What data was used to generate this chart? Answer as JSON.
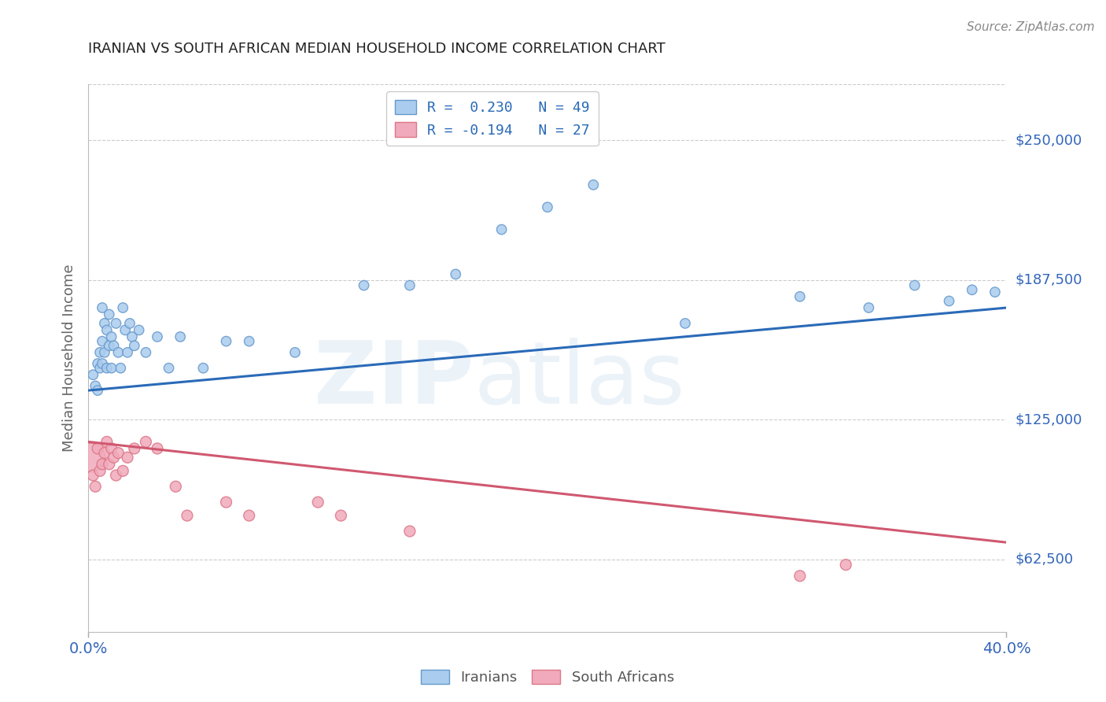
{
  "title": "IRANIAN VS SOUTH AFRICAN MEDIAN HOUSEHOLD INCOME CORRELATION CHART",
  "source": "Source: ZipAtlas.com",
  "ylabel": "Median Household Income",
  "yticks": [
    62500,
    125000,
    187500,
    250000
  ],
  "ytick_labels": [
    "$62,500",
    "$125,000",
    "$187,500",
    "$250,000"
  ],
  "xtick_left": "0.0%",
  "xtick_right": "40.0%",
  "xlim": [
    0.0,
    0.4
  ],
  "ylim": [
    30000,
    275000
  ],
  "watermark_zip": "ZIP",
  "watermark_atlas": "atlas",
  "title_color": "#222222",
  "source_color": "#888888",
  "grid_color": "#cccccc",
  "blue_line_color": "#2a6ab8",
  "pink_line_color": "#d05870",
  "blue_dot_color": "#aaccee",
  "pink_dot_color": "#f0aabb",
  "blue_dot_edge": "#6699cc",
  "pink_dot_edge": "#dd7788",
  "axis_label_color": "#3366bb",
  "ylabel_color": "#666666",
  "legend1_line1": "R =  0.230   N = 49",
  "legend1_line2": "R = -0.194   N = 27",
  "legend2_item1": "Iranians",
  "legend2_item2": "South Africans",
  "iranians_x": [
    0.002,
    0.003,
    0.004,
    0.004,
    0.005,
    0.005,
    0.006,
    0.006,
    0.006,
    0.007,
    0.007,
    0.008,
    0.008,
    0.009,
    0.009,
    0.01,
    0.01,
    0.011,
    0.012,
    0.013,
    0.014,
    0.015,
    0.016,
    0.017,
    0.018,
    0.019,
    0.02,
    0.022,
    0.025,
    0.03,
    0.035,
    0.04,
    0.05,
    0.06,
    0.07,
    0.09,
    0.12,
    0.14,
    0.16,
    0.18,
    0.2,
    0.22,
    0.26,
    0.31,
    0.34,
    0.36,
    0.375,
    0.385,
    0.395
  ],
  "iranians_y": [
    145000,
    140000,
    150000,
    138000,
    155000,
    148000,
    175000,
    160000,
    150000,
    168000,
    155000,
    165000,
    148000,
    172000,
    158000,
    162000,
    148000,
    158000,
    168000,
    155000,
    148000,
    175000,
    165000,
    155000,
    168000,
    162000,
    158000,
    165000,
    155000,
    162000,
    148000,
    162000,
    148000,
    160000,
    160000,
    155000,
    185000,
    185000,
    190000,
    210000,
    220000,
    230000,
    168000,
    180000,
    175000,
    185000,
    178000,
    183000,
    182000
  ],
  "iranians_sizes": [
    80,
    80,
    80,
    80,
    80,
    80,
    80,
    80,
    80,
    80,
    80,
    80,
    80,
    80,
    80,
    80,
    80,
    80,
    80,
    80,
    80,
    80,
    80,
    80,
    80,
    80,
    80,
    80,
    80,
    80,
    80,
    80,
    80,
    80,
    80,
    80,
    80,
    80,
    80,
    80,
    80,
    80,
    80,
    80,
    80,
    80,
    80,
    80,
    80
  ],
  "sa_x": [
    0.001,
    0.002,
    0.003,
    0.004,
    0.005,
    0.006,
    0.007,
    0.008,
    0.009,
    0.01,
    0.011,
    0.012,
    0.013,
    0.015,
    0.017,
    0.02,
    0.025,
    0.03,
    0.038,
    0.043,
    0.06,
    0.07,
    0.1,
    0.11,
    0.14,
    0.31,
    0.33
  ],
  "sa_y": [
    108000,
    100000,
    95000,
    112000,
    102000,
    105000,
    110000,
    115000,
    105000,
    112000,
    108000,
    100000,
    110000,
    102000,
    108000,
    112000,
    115000,
    112000,
    95000,
    82000,
    88000,
    82000,
    88000,
    82000,
    75000,
    55000,
    60000
  ],
  "sa_sizes": [
    700,
    100,
    100,
    100,
    100,
    100,
    100,
    100,
    100,
    100,
    100,
    100,
    100,
    100,
    100,
    100,
    100,
    100,
    100,
    100,
    100,
    100,
    100,
    100,
    100,
    100,
    100
  ],
  "iranian_trend_x": [
    0.0,
    0.4
  ],
  "iranian_trend_y": [
    138000,
    175000
  ],
  "sa_trend_x": [
    0.0,
    0.4
  ],
  "sa_trend_y": [
    115000,
    70000
  ]
}
